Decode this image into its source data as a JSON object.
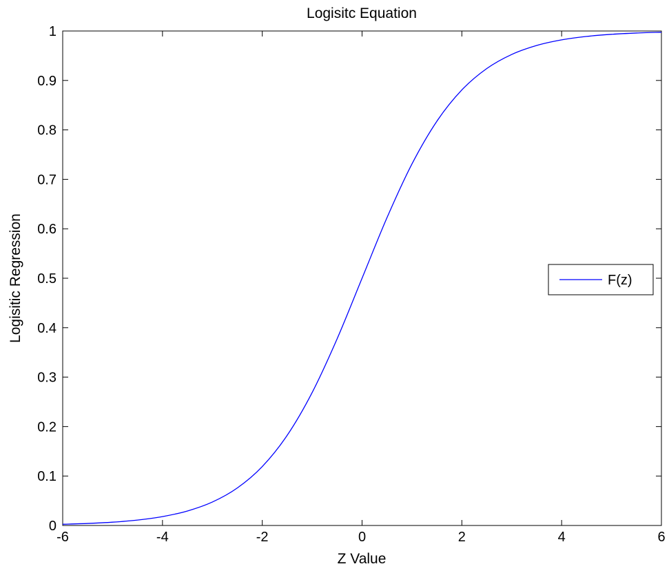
{
  "chart_data": {
    "type": "line",
    "title": "Logisitc Equation",
    "xlabel": "Z Value",
    "ylabel": "Logisitic Regression",
    "xlim": [
      -6,
      6
    ],
    "ylim": [
      0,
      1
    ],
    "x_ticks": [
      -6,
      -4,
      -2,
      0,
      2,
      4,
      6
    ],
    "x_tick_labels": [
      "-6",
      "-4",
      "-2",
      "0",
      "2",
      "4",
      "6"
    ],
    "y_ticks": [
      0,
      0.1,
      0.2,
      0.3,
      0.4,
      0.5,
      0.6,
      0.7,
      0.8,
      0.9,
      1
    ],
    "y_tick_labels": [
      "0",
      "0.1",
      "0.2",
      "0.3",
      "0.4",
      "0.5",
      "0.6",
      "0.7",
      "0.8",
      "0.9",
      "1"
    ],
    "grid": false,
    "legend_position": "right",
    "series": [
      {
        "name": "F(z)",
        "color": "#0000ff",
        "x": [
          -6,
          -5.5,
          -5,
          -4.5,
          -4,
          -3.5,
          -3,
          -2.5,
          -2,
          -1.5,
          -1,
          -0.5,
          0,
          0.5,
          1,
          1.5,
          2,
          2.5,
          3,
          3.5,
          4,
          4.5,
          5,
          5.5,
          6
        ],
        "y": [
          0.0025,
          0.0041,
          0.0067,
          0.011,
          0.018,
          0.0293,
          0.0474,
          0.0759,
          0.1192,
          0.1824,
          0.2689,
          0.3775,
          0.5,
          0.6225,
          0.7311,
          0.8176,
          0.8808,
          0.9241,
          0.9526,
          0.9707,
          0.982,
          0.989,
          0.9933,
          0.9959,
          0.9975
        ]
      }
    ]
  }
}
